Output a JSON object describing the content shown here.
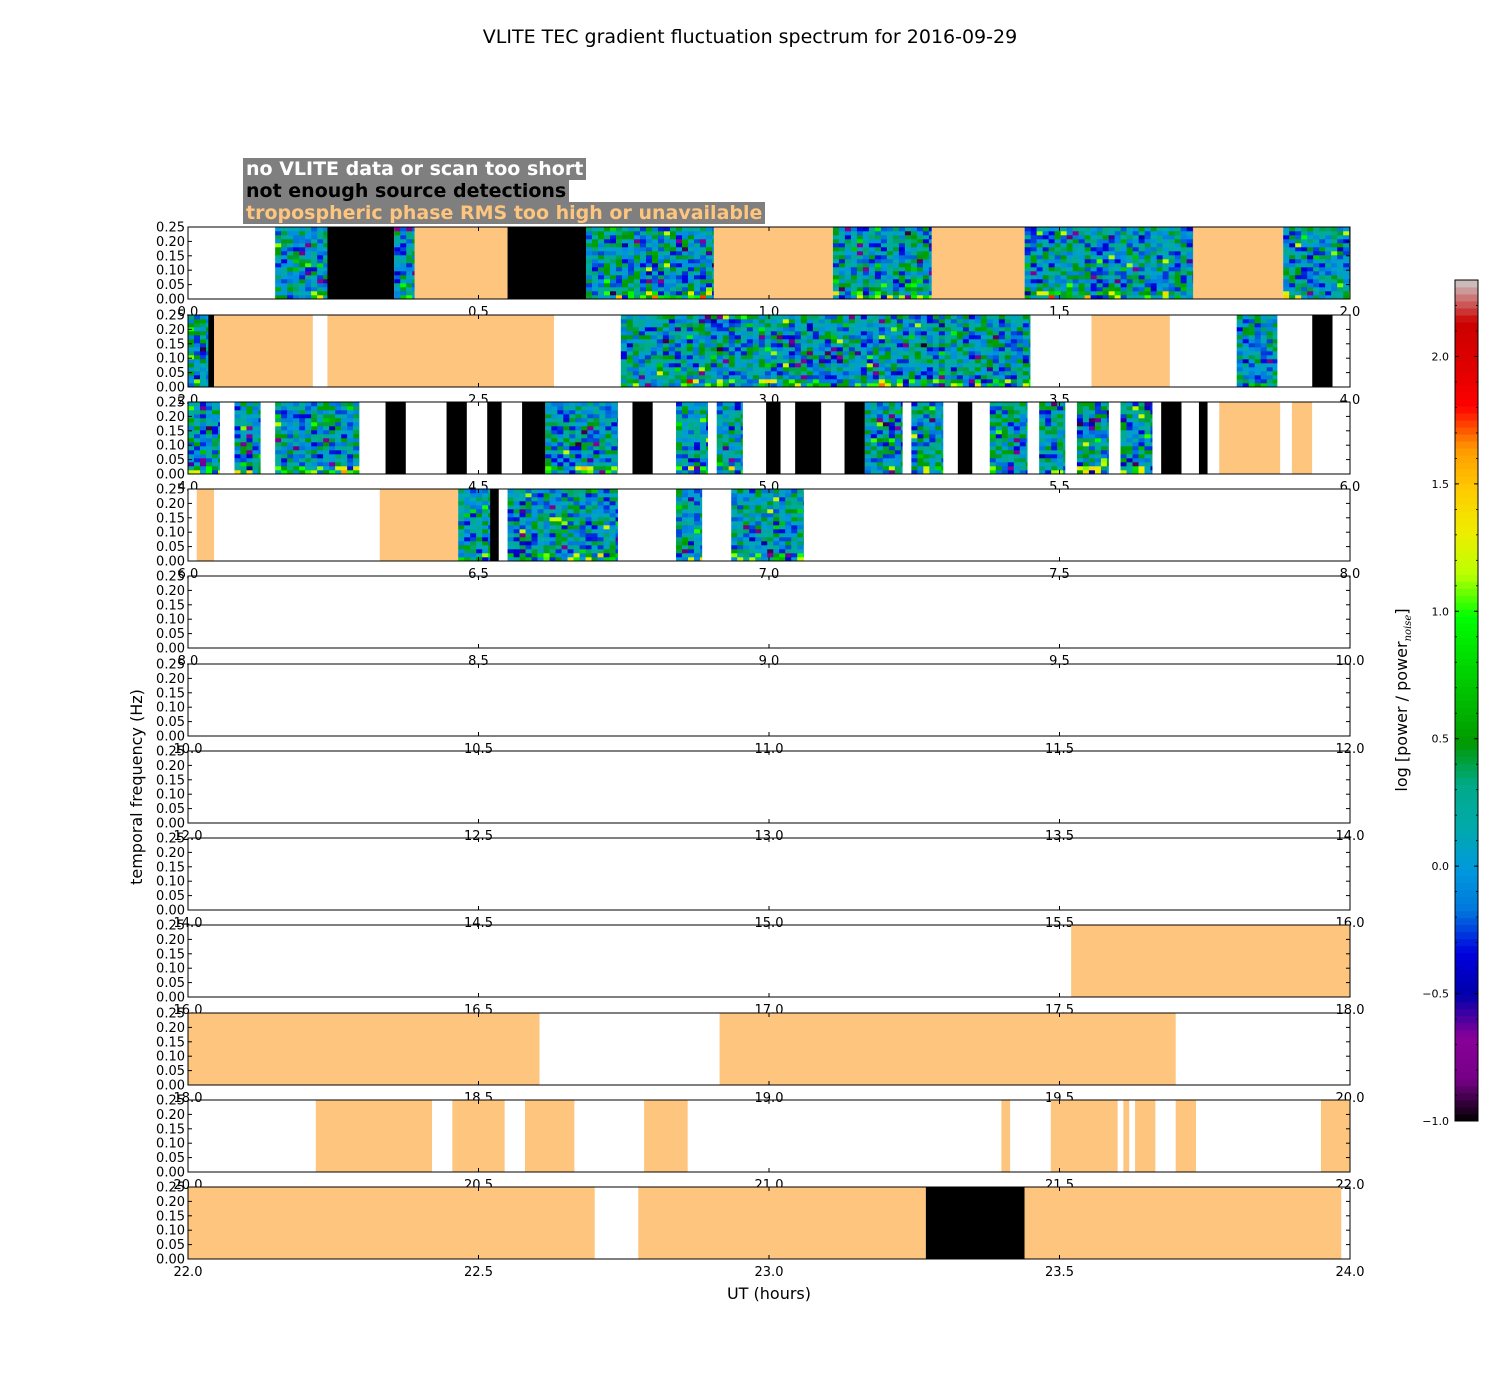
{
  "chart_data": {
    "type": "heatmap",
    "title": "VLITE TEC gradient fluctuation spectrum for 2016-09-29",
    "xlabel": "UT (hours)",
    "ylabel": "temporal frequency (Hz)",
    "ylim": [
      0,
      0.25
    ],
    "y_ticks": [
      "0.00",
      "0.05",
      "0.10",
      "0.15",
      "0.20",
      "0.25"
    ],
    "hours_per_panel": 2,
    "legend": [
      {
        "label": "no VLITE data or scan too short",
        "color": "#ffffff"
      },
      {
        "label": "not enough source detections",
        "color": "#000000"
      },
      {
        "label": "tropospheric phase RMS too high or unavailable",
        "color": "#fec57e"
      }
    ],
    "flag_colors": {
      "nodata": "#ffffff",
      "lowdet": "#000000",
      "trop": "#fec57e"
    },
    "colorbar": {
      "label_main": "log [power / power",
      "label_sub": "noise",
      "label_end": "]",
      "range": [
        -1.0,
        2.3
      ],
      "ticks": [
        "−1.0",
        "−0.5",
        "0.0",
        "0.5",
        "1.0",
        "1.5",
        "2.0"
      ],
      "tick_values": [
        -1.0,
        -0.5,
        0.0,
        0.5,
        1.0,
        1.5,
        2.0
      ]
    },
    "panels": [
      {
        "start": 0.0,
        "x_ticks": [
          "0.0",
          "0.5",
          "1.0",
          "1.5",
          "2.0"
        ],
        "segments": [
          {
            "from": 0.0,
            "to": 0.15,
            "status": "nodata"
          },
          {
            "from": 0.15,
            "to": 0.24,
            "status": "data"
          },
          {
            "from": 0.24,
            "to": 0.355,
            "status": "lowdet"
          },
          {
            "from": 0.355,
            "to": 0.39,
            "status": "data"
          },
          {
            "from": 0.39,
            "to": 0.55,
            "status": "trop"
          },
          {
            "from": 0.55,
            "to": 0.685,
            "status": "lowdet"
          },
          {
            "from": 0.685,
            "to": 0.905,
            "status": "data"
          },
          {
            "from": 0.905,
            "to": 1.11,
            "status": "trop"
          },
          {
            "from": 1.11,
            "to": 1.28,
            "status": "data"
          },
          {
            "from": 1.28,
            "to": 1.44,
            "status": "trop"
          },
          {
            "from": 1.44,
            "to": 1.73,
            "status": "data"
          },
          {
            "from": 1.73,
            "to": 1.885,
            "status": "trop"
          },
          {
            "from": 1.885,
            "to": 2.0,
            "status": "data"
          }
        ]
      },
      {
        "start": 2.0,
        "x_ticks": [
          "2.0",
          "2.5",
          "3.0",
          "3.5",
          "4.0"
        ],
        "segments": [
          {
            "from": 2.0,
            "to": 2.035,
            "status": "data"
          },
          {
            "from": 2.035,
            "to": 2.045,
            "status": "lowdet"
          },
          {
            "from": 2.045,
            "to": 2.215,
            "status": "trop"
          },
          {
            "from": 2.215,
            "to": 2.24,
            "status": "nodata"
          },
          {
            "from": 2.24,
            "to": 2.63,
            "status": "trop"
          },
          {
            "from": 2.63,
            "to": 2.745,
            "status": "nodata"
          },
          {
            "from": 2.745,
            "to": 3.45,
            "status": "data"
          },
          {
            "from": 3.45,
            "to": 3.555,
            "status": "nodata"
          },
          {
            "from": 3.555,
            "to": 3.69,
            "status": "trop"
          },
          {
            "from": 3.69,
            "to": 3.805,
            "status": "nodata"
          },
          {
            "from": 3.805,
            "to": 3.875,
            "status": "data"
          },
          {
            "from": 3.875,
            "to": 3.935,
            "status": "nodata"
          },
          {
            "from": 3.935,
            "to": 3.97,
            "status": "lowdet"
          },
          {
            "from": 3.97,
            "to": 4.0,
            "status": "nodata"
          }
        ]
      },
      {
        "start": 4.0,
        "x_ticks": [
          "4.0",
          "4.5",
          "5.0",
          "5.5",
          "6.0"
        ],
        "segments": [
          {
            "from": 4.0,
            "to": 4.055,
            "status": "data"
          },
          {
            "from": 4.055,
            "to": 4.08,
            "status": "nodata"
          },
          {
            "from": 4.08,
            "to": 4.125,
            "status": "data"
          },
          {
            "from": 4.125,
            "to": 4.15,
            "status": "nodata"
          },
          {
            "from": 4.15,
            "to": 4.295,
            "status": "data"
          },
          {
            "from": 4.295,
            "to": 4.34,
            "status": "nodata"
          },
          {
            "from": 4.34,
            "to": 4.375,
            "status": "lowdet"
          },
          {
            "from": 4.375,
            "to": 4.445,
            "status": "nodata"
          },
          {
            "from": 4.445,
            "to": 4.48,
            "status": "lowdet"
          },
          {
            "from": 4.48,
            "to": 4.515,
            "status": "nodata"
          },
          {
            "from": 4.515,
            "to": 4.54,
            "status": "lowdet"
          },
          {
            "from": 4.54,
            "to": 4.575,
            "status": "nodata"
          },
          {
            "from": 4.575,
            "to": 4.615,
            "status": "lowdet"
          },
          {
            "from": 4.615,
            "to": 4.74,
            "status": "data"
          },
          {
            "from": 4.74,
            "to": 4.765,
            "status": "nodata"
          },
          {
            "from": 4.765,
            "to": 4.8,
            "status": "lowdet"
          },
          {
            "from": 4.8,
            "to": 4.84,
            "status": "nodata"
          },
          {
            "from": 4.84,
            "to": 4.895,
            "status": "data"
          },
          {
            "from": 4.895,
            "to": 4.91,
            "status": "nodata"
          },
          {
            "from": 4.91,
            "to": 4.955,
            "status": "data"
          },
          {
            "from": 4.955,
            "to": 4.995,
            "status": "nodata"
          },
          {
            "from": 4.995,
            "to": 5.02,
            "status": "lowdet"
          },
          {
            "from": 5.02,
            "to": 5.045,
            "status": "nodata"
          },
          {
            "from": 5.045,
            "to": 5.09,
            "status": "lowdet"
          },
          {
            "from": 5.09,
            "to": 5.13,
            "status": "nodata"
          },
          {
            "from": 5.13,
            "to": 5.165,
            "status": "lowdet"
          },
          {
            "from": 5.165,
            "to": 5.23,
            "status": "data"
          },
          {
            "from": 5.23,
            "to": 5.245,
            "status": "nodata"
          },
          {
            "from": 5.245,
            "to": 5.3,
            "status": "data"
          },
          {
            "from": 5.3,
            "to": 5.325,
            "status": "nodata"
          },
          {
            "from": 5.325,
            "to": 5.35,
            "status": "lowdet"
          },
          {
            "from": 5.35,
            "to": 5.38,
            "status": "nodata"
          },
          {
            "from": 5.38,
            "to": 5.445,
            "status": "data"
          },
          {
            "from": 5.445,
            "to": 5.465,
            "status": "nodata"
          },
          {
            "from": 5.465,
            "to": 5.51,
            "status": "data"
          },
          {
            "from": 5.51,
            "to": 5.53,
            "status": "nodata"
          },
          {
            "from": 5.53,
            "to": 5.585,
            "status": "data"
          },
          {
            "from": 5.585,
            "to": 5.605,
            "status": "nodata"
          },
          {
            "from": 5.605,
            "to": 5.66,
            "status": "data"
          },
          {
            "from": 5.66,
            "to": 5.675,
            "status": "nodata"
          },
          {
            "from": 5.675,
            "to": 5.71,
            "status": "lowdet"
          },
          {
            "from": 5.71,
            "to": 5.74,
            "status": "nodata"
          },
          {
            "from": 5.74,
            "to": 5.755,
            "status": "lowdet"
          },
          {
            "from": 5.755,
            "to": 5.775,
            "status": "nodata"
          },
          {
            "from": 5.775,
            "to": 5.88,
            "status": "trop"
          },
          {
            "from": 5.88,
            "to": 5.9,
            "status": "nodata"
          },
          {
            "from": 5.9,
            "to": 5.935,
            "status": "trop"
          },
          {
            "from": 5.935,
            "to": 6.0,
            "status": "nodata"
          }
        ]
      },
      {
        "start": 6.0,
        "x_ticks": [
          "6.0",
          "6.5",
          "7.0",
          "7.5",
          "8.0"
        ],
        "segments": [
          {
            "from": 6.0,
            "to": 6.015,
            "status": "nodata"
          },
          {
            "from": 6.015,
            "to": 6.045,
            "status": "trop"
          },
          {
            "from": 6.045,
            "to": 6.33,
            "status": "nodata"
          },
          {
            "from": 6.33,
            "to": 6.465,
            "status": "trop"
          },
          {
            "from": 6.465,
            "to": 6.52,
            "status": "data"
          },
          {
            "from": 6.52,
            "to": 6.535,
            "status": "lowdet"
          },
          {
            "from": 6.535,
            "to": 6.55,
            "status": "nodata"
          },
          {
            "from": 6.55,
            "to": 6.74,
            "status": "data"
          },
          {
            "from": 6.74,
            "to": 6.84,
            "status": "nodata"
          },
          {
            "from": 6.84,
            "to": 6.885,
            "status": "data"
          },
          {
            "from": 6.885,
            "to": 6.935,
            "status": "nodata"
          },
          {
            "from": 6.935,
            "to": 7.06,
            "status": "data"
          },
          {
            "from": 7.06,
            "to": 8.0,
            "status": "nodata"
          }
        ]
      },
      {
        "start": 8.0,
        "x_ticks": [
          "8.0",
          "8.5",
          "9.0",
          "9.5",
          "10.0"
        ],
        "segments": []
      },
      {
        "start": 10.0,
        "x_ticks": [
          "10.0",
          "10.5",
          "11.0",
          "11.5",
          "12.0"
        ],
        "segments": []
      },
      {
        "start": 12.0,
        "x_ticks": [
          "12.0",
          "12.5",
          "13.0",
          "13.5",
          "14.0"
        ],
        "segments": []
      },
      {
        "start": 14.0,
        "x_ticks": [
          "14.0",
          "14.5",
          "15.0",
          "15.5",
          "16.0"
        ],
        "segments": []
      },
      {
        "start": 16.0,
        "x_ticks": [
          "16.0",
          "16.5",
          "17.0",
          "17.5",
          "18.0"
        ],
        "segments": [
          {
            "from": 17.52,
            "to": 18.0,
            "status": "trop"
          }
        ]
      },
      {
        "start": 18.0,
        "x_ticks": [
          "18.0",
          "18.5",
          "19.0",
          "19.5",
          "20.0"
        ],
        "segments": [
          {
            "from": 18.0,
            "to": 18.605,
            "status": "trop"
          },
          {
            "from": 18.915,
            "to": 19.7,
            "status": "trop"
          }
        ]
      },
      {
        "start": 20.0,
        "x_ticks": [
          "20.0",
          "20.5",
          "21.0",
          "21.5",
          "22.0"
        ],
        "segments": [
          {
            "from": 20.22,
            "to": 20.42,
            "status": "trop"
          },
          {
            "from": 20.455,
            "to": 20.545,
            "status": "trop"
          },
          {
            "from": 20.58,
            "to": 20.665,
            "status": "trop"
          },
          {
            "from": 20.785,
            "to": 20.86,
            "status": "trop"
          },
          {
            "from": 21.4,
            "to": 21.415,
            "status": "trop"
          },
          {
            "from": 21.485,
            "to": 21.6,
            "status": "trop"
          },
          {
            "from": 21.61,
            "to": 21.62,
            "status": "trop"
          },
          {
            "from": 21.63,
            "to": 21.665,
            "status": "trop"
          },
          {
            "from": 21.7,
            "to": 21.735,
            "status": "trop"
          },
          {
            "from": 21.95,
            "to": 22.0,
            "status": "trop"
          }
        ]
      },
      {
        "start": 22.0,
        "x_ticks": [
          "22.0",
          "22.5",
          "23.0",
          "23.5",
          "24.0"
        ],
        "segments": [
          {
            "from": 22.0,
            "to": 22.7,
            "status": "trop"
          },
          {
            "from": 22.775,
            "to": 23.27,
            "status": "trop"
          },
          {
            "from": 23.27,
            "to": 23.44,
            "status": "lowdet"
          },
          {
            "from": 23.44,
            "to": 23.985,
            "status": "trop"
          }
        ]
      }
    ]
  }
}
